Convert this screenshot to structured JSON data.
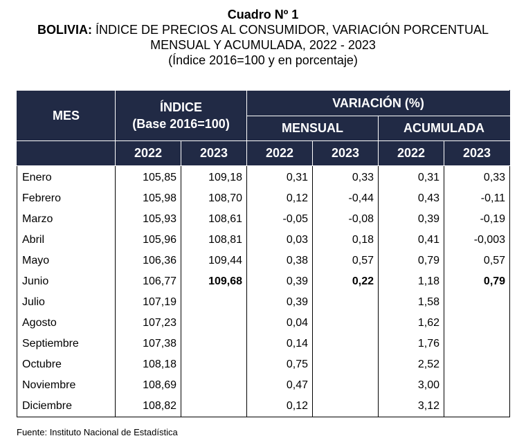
{
  "title": {
    "line1": "Cuadro Nº 1",
    "line2_bold": "BOLIVIA:",
    "line2_rest": " ÍNDICE DE PRECIOS AL CONSUMIDOR, VARIACIÓN PORCENTUAL",
    "line3": "MENSUAL Y ACUMULADA, 2022 - 2023",
    "line4": "(Índice 2016=100 y en porcentaje)"
  },
  "table": {
    "header": {
      "mes": "MES",
      "indice_line1": "ÍNDICE",
      "indice_line2": "(Base 2016=100)",
      "variacion": "VARIACIÓN (%)",
      "mensual": "MENSUAL",
      "acumulada": "ACUMULADA",
      "years": [
        "2022",
        "2023",
        "2022",
        "2023",
        "2022",
        "2023"
      ]
    },
    "rows": [
      {
        "mes": "Enero",
        "i22": "105,85",
        "i23": "109,18",
        "m22": "0,31",
        "m23": "0,33",
        "a22": "0,31",
        "a23": "0,33"
      },
      {
        "mes": "Febrero",
        "i22": "105,98",
        "i23": "108,70",
        "m22": "0,12",
        "m23": "-0,44",
        "a22": "0,43",
        "a23": "-0,11"
      },
      {
        "mes": "Marzo",
        "i22": "105,93",
        "i23": "108,61",
        "m22": "-0,05",
        "m23": "-0,08",
        "a22": "0,39",
        "a23": "-0,19"
      },
      {
        "mes": "Abril",
        "i22": "105,96",
        "i23": "108,81",
        "m22": "0,03",
        "m23": "0,18",
        "a22": "0,41",
        "a23": "-0,003"
      },
      {
        "mes": "Mayo",
        "i22": "106,36",
        "i23": "109,44",
        "m22": "0,38",
        "m23": "0,57",
        "a22": "0,79",
        "a23": "0,57"
      },
      {
        "mes": "Junio",
        "i22": "106,77",
        "i23": "109,68",
        "m22": "0,39",
        "m23": "0,22",
        "a22": "1,18",
        "a23": "0,79"
      },
      {
        "mes": "Julio",
        "i22": "107,19",
        "i23": "",
        "m22": "0,39",
        "m23": "",
        "a22": "1,58",
        "a23": ""
      },
      {
        "mes": "Agosto",
        "i22": "107,23",
        "i23": "",
        "m22": "0,04",
        "m23": "",
        "a22": "1,62",
        "a23": ""
      },
      {
        "mes": "Septiembre",
        "i22": "107,38",
        "i23": "",
        "m22": "0,14",
        "m23": "",
        "a22": "1,76",
        "a23": ""
      },
      {
        "mes": "Octubre",
        "i22": "108,18",
        "i23": "",
        "m22": "0,75",
        "m23": "",
        "a22": "2,52",
        "a23": ""
      },
      {
        "mes": "Noviembre",
        "i22": "108,69",
        "i23": "",
        "m22": "0,47",
        "m23": "",
        "a22": "3,00",
        "a23": ""
      },
      {
        "mes": "Diciembre",
        "i22": "108,82",
        "i23": "",
        "m22": "0,12",
        "m23": "",
        "a22": "3,12",
        "a23": ""
      }
    ]
  },
  "source": "Fuente: Instituto Nacional de Estadística"
}
